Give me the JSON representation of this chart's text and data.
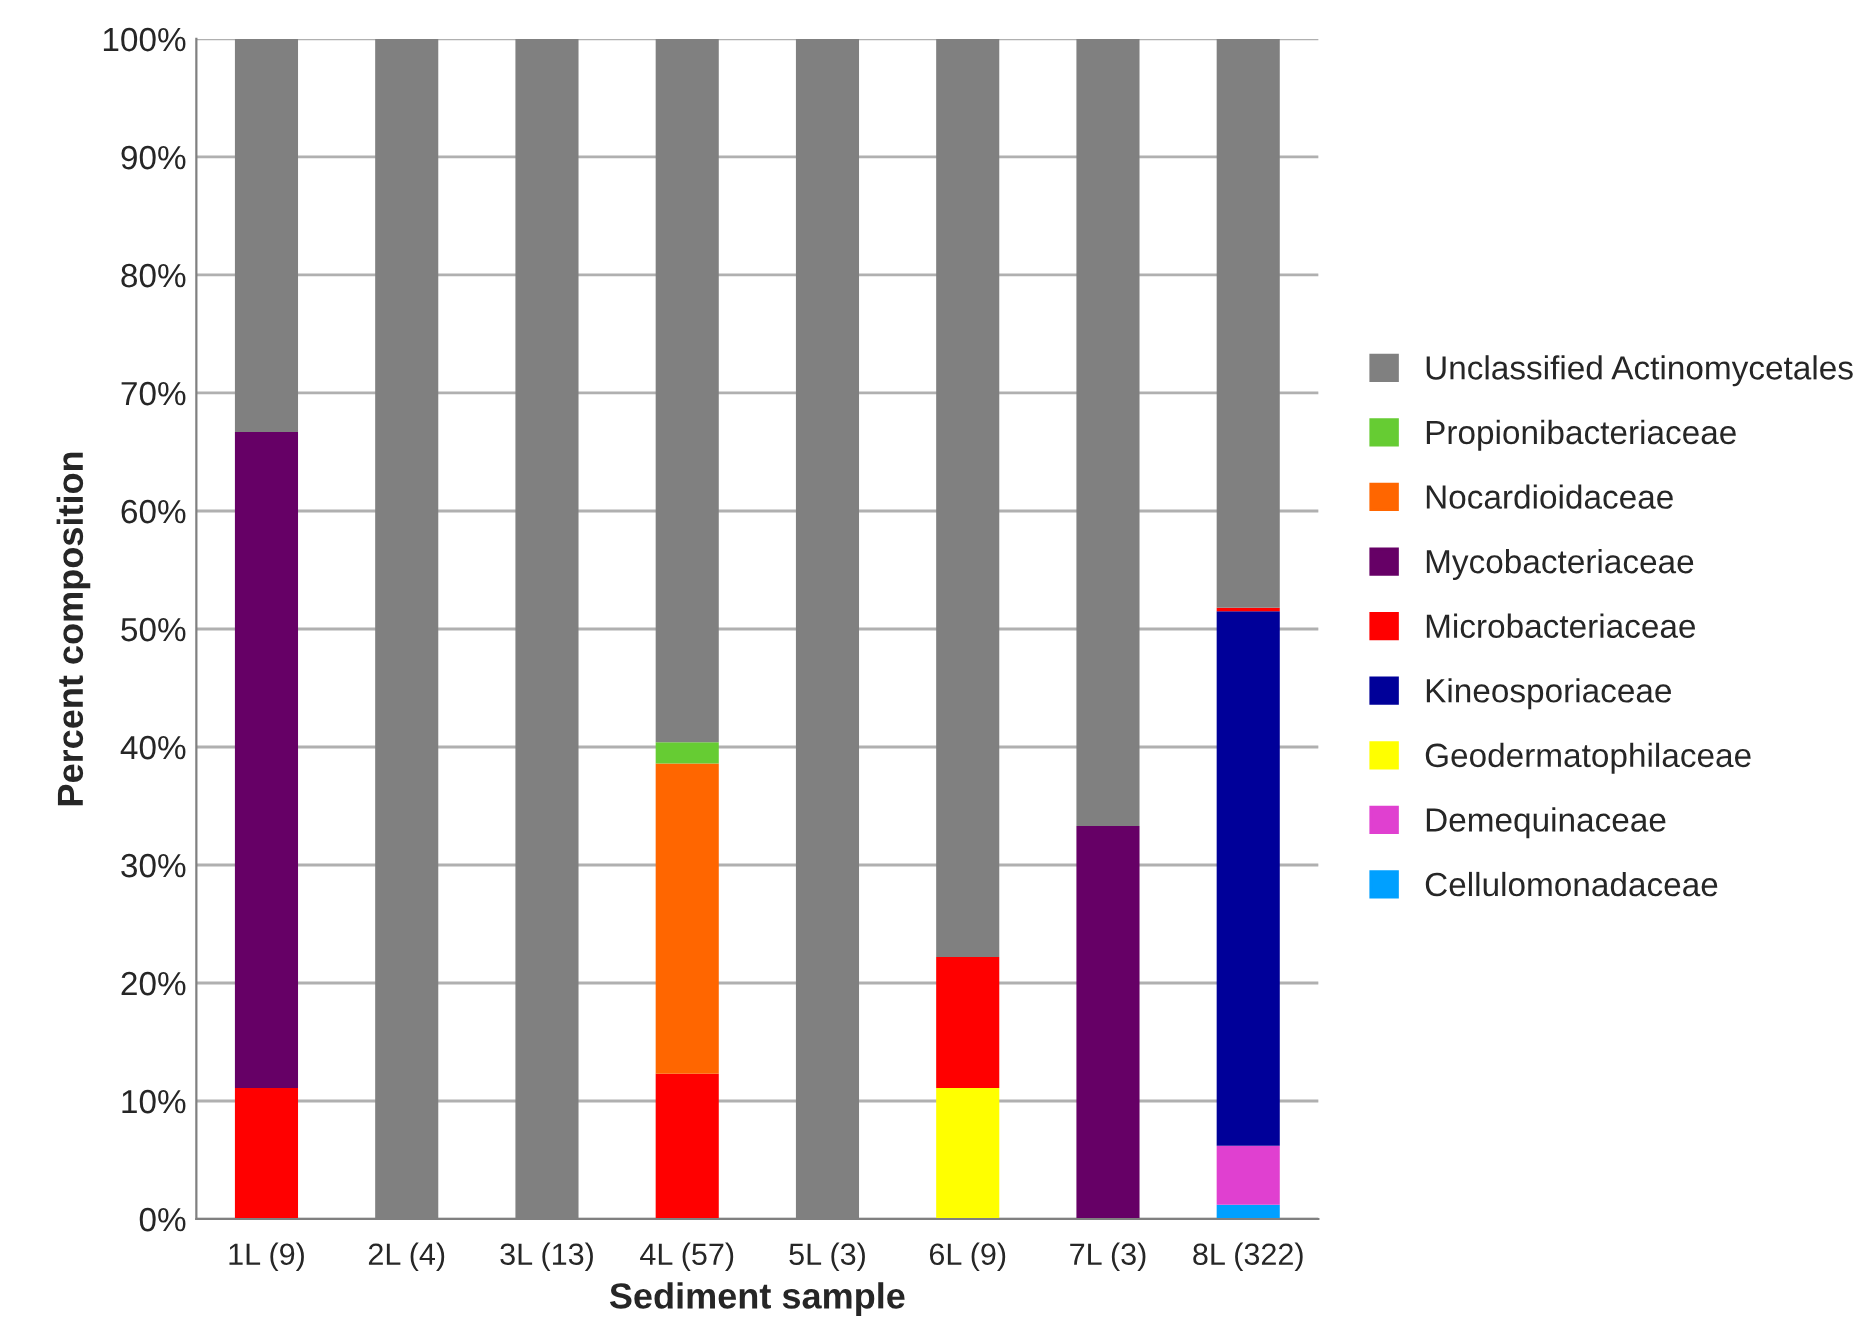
{
  "chart_data": {
    "type": "bar",
    "stacked": true,
    "xlabel": "Sediment sample",
    "ylabel": "Percent composition",
    "categories": [
      "1L (9)",
      "2L (4)",
      "3L (13)",
      "4L (57)",
      "5L (3)",
      "6L (9)",
      "7L (3)",
      "8L (322)"
    ],
    "series": [
      {
        "name": "Cellulomonadaceae",
        "color": "#00a0ff",
        "values": [
          0,
          0,
          0,
          0,
          0,
          0,
          0,
          1.2
        ]
      },
      {
        "name": "Demequinaceae",
        "color": "#e040d0",
        "values": [
          0,
          0,
          0,
          0,
          0,
          0,
          0,
          5.0
        ]
      },
      {
        "name": "Geodermatophilaceae",
        "color": "#ffff00",
        "values": [
          0,
          0,
          0,
          0,
          0,
          11.1,
          0,
          0
        ]
      },
      {
        "name": "Kineosporiaceae",
        "color": "#000099",
        "values": [
          0,
          0,
          0,
          0,
          0,
          0,
          0,
          45.3
        ]
      },
      {
        "name": "Microbacteriaceae",
        "color": "#ff0000",
        "values": [
          11.1,
          0,
          0,
          12.3,
          0,
          11.1,
          0,
          0.3
        ]
      },
      {
        "name": "Mycobacteriaceae",
        "color": "#660066",
        "values": [
          55.6,
          0,
          0,
          0,
          0,
          0,
          33.3,
          0
        ]
      },
      {
        "name": "Nocardioidaceae",
        "color": "#ff6600",
        "values": [
          0,
          0,
          0,
          26.3,
          0,
          0,
          0,
          0
        ]
      },
      {
        "name": "Propionibacteriaceae",
        "color": "#66cc33",
        "values": [
          0,
          0,
          0,
          1.8,
          0,
          0,
          0,
          0
        ]
      },
      {
        "name": "Unclassified Actinomycetales",
        "color": "#808080",
        "values": [
          33.3,
          100,
          100,
          59.6,
          100,
          77.8,
          66.7,
          48.2
        ]
      }
    ],
    "ylim": [
      0,
      100
    ],
    "yticks": [
      {
        "value": 0,
        "label": "0%"
      },
      {
        "value": 10,
        "label": "10%"
      },
      {
        "value": 20,
        "label": "20%"
      },
      {
        "value": 30,
        "label": "30%"
      },
      {
        "value": 40,
        "label": "40%"
      },
      {
        "value": 50,
        "label": "50%"
      },
      {
        "value": 60,
        "label": "60%"
      },
      {
        "value": 70,
        "label": "70%"
      },
      {
        "value": 80,
        "label": "80%"
      },
      {
        "value": 90,
        "label": "90%"
      },
      {
        "value": 100,
        "label": "100%"
      }
    ],
    "grid": "y",
    "legend": "right"
  }
}
